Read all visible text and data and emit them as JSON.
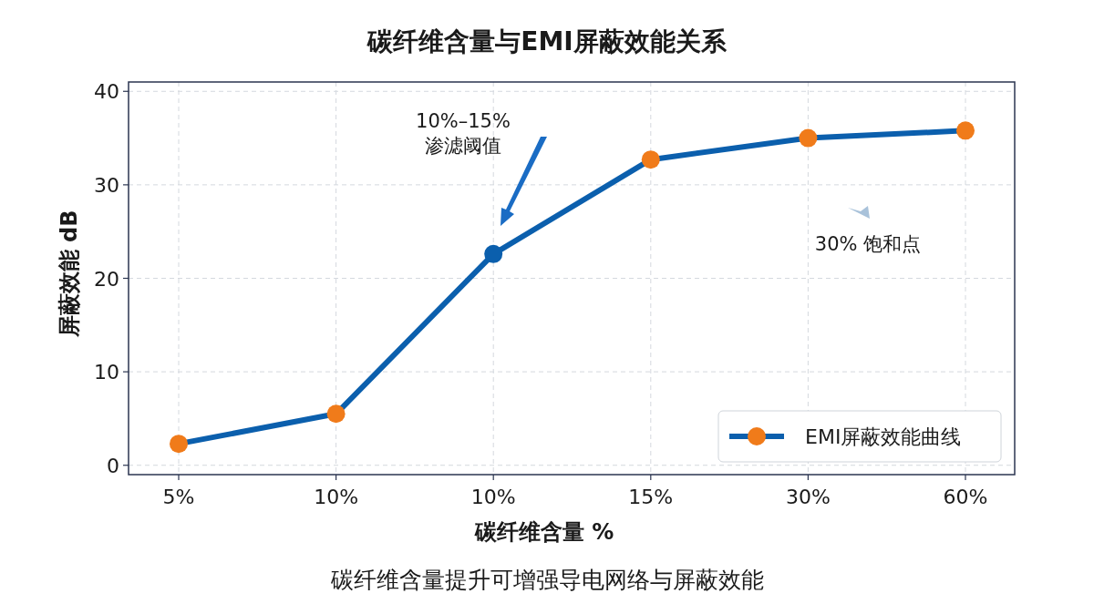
{
  "chart_data": {
    "type": "line",
    "title": "碳纤维含量与EMI屏蔽效能关系",
    "xlabel": "碳纤维含量 %",
    "ylabel": "屏蔽效能 dB",
    "categories": [
      "5%",
      "10%",
      "10%",
      "15%",
      "30%",
      "60%"
    ],
    "series": [
      {
        "name": "EMI屏蔽效能曲线",
        "color": "#0b5fad",
        "colors": [
          "#f07b1a",
          "#f07b1a",
          "#0b5fad",
          "#f07b1a",
          "#f07b1a",
          "#f07b1a"
        ],
        "values": [
          2.3,
          5.5,
          22.6,
          32.7,
          35.0,
          35.8
        ]
      }
    ],
    "ylim": [
      -1,
      41
    ],
    "yticks": [
      0,
      10,
      20,
      30,
      40
    ],
    "grid": true,
    "legend": "bottom right",
    "marker": "circle",
    "line_style": "solid",
    "annotations": [
      "10%–15%\n渗滤阈值",
      "30% 饱和点",
      "碳纤维含量提升可增强导电网络与屏蔽效能"
    ]
  }
}
